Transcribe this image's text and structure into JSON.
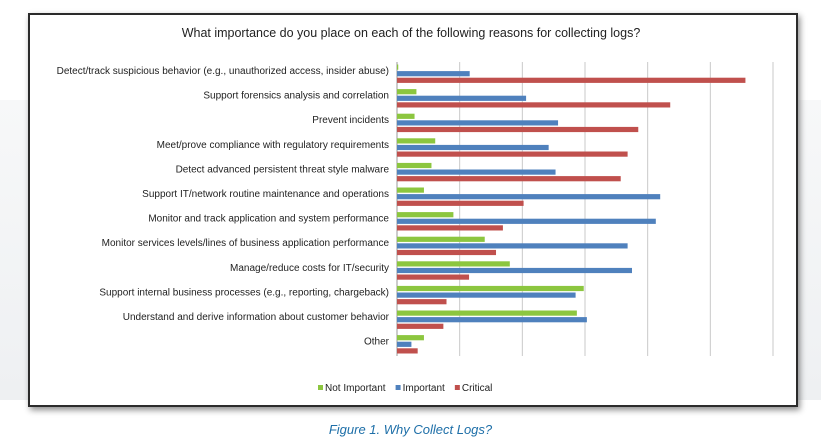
{
  "chart_data": {
    "type": "bar",
    "orientation": "horizontal",
    "title": "What importance do you place on each of the following reasons for collecting logs?",
    "categories": [
      "Detect/track suspicious behavior (e.g., unauthorized access, insider abuse)",
      "Support forensics analysis and correlation",
      "Prevent incidents",
      "Meet/prove compliance with regulatory requirements",
      "Detect advanced persistent threat style malware",
      "Support IT/network routine maintenance and operations",
      "Monitor and track application and system performance",
      "Monitor services levels/lines of business application performance",
      "Manage/reduce costs for IT/security",
      "Support internal business processes (e.g., reporting, chargeback)",
      "Understand and derive information about customer behavior",
      "Other"
    ],
    "series": [
      {
        "name": "Not Important",
        "color": "#8cc63f",
        "values": [
          0.2,
          3.1,
          2.8,
          6.1,
          5.5,
          4.3,
          9.0,
          14.0,
          18.0,
          29.8,
          28.7,
          4.3
        ]
      },
      {
        "name": "Important",
        "color": "#4f81bd",
        "values": [
          11.6,
          20.6,
          25.7,
          24.2,
          25.3,
          42.0,
          41.3,
          36.8,
          37.5,
          28.5,
          30.3,
          2.3
        ]
      },
      {
        "name": "Critical",
        "color": "#c0504d",
        "values": [
          55.6,
          43.6,
          38.5,
          36.8,
          35.7,
          20.2,
          16.9,
          15.8,
          11.5,
          7.9,
          7.4,
          3.3
        ]
      }
    ],
    "xlim": [
      0,
      60
    ],
    "x_gridlines": [
      0,
      10,
      20,
      30,
      40,
      50,
      60
    ],
    "grid": true,
    "legend_position": "bottom"
  },
  "caption": "Figure 1. Why Collect Logs?"
}
